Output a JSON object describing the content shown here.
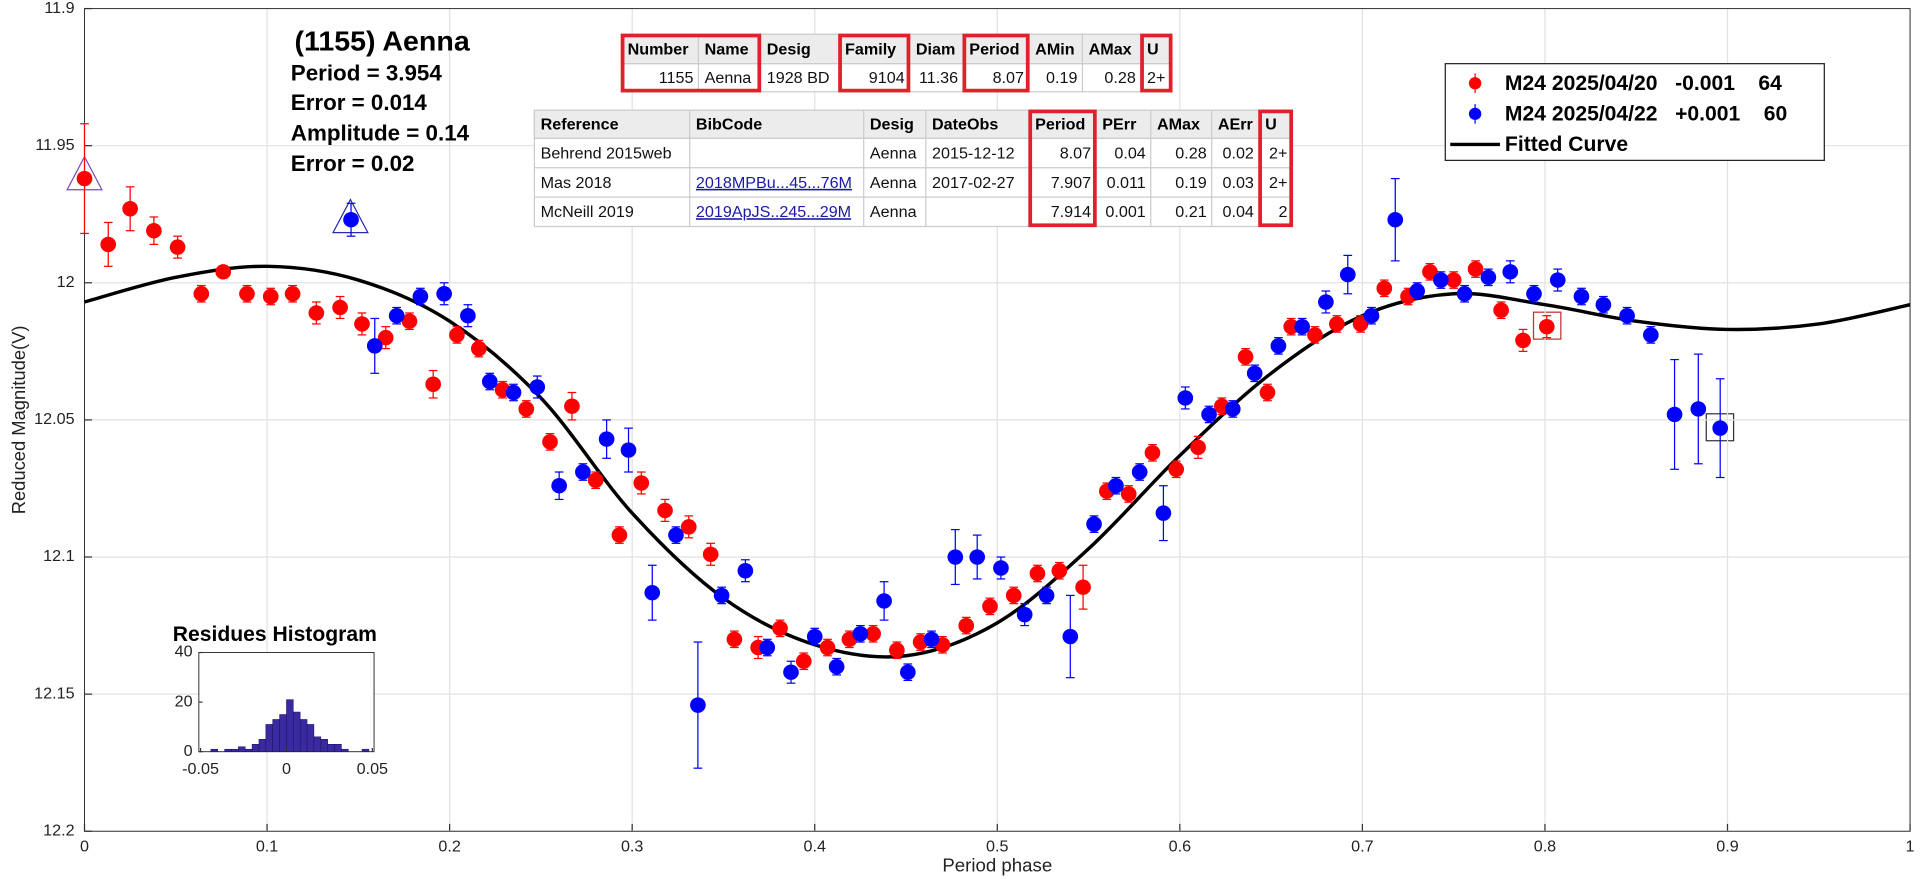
{
  "chart_data": [
    {
      "type": "scatter",
      "annotations": [
        "(1155) Aenna",
        "Period =  3.954",
        "Error = 0.014",
        "Amplitude = 0.14",
        "Error = 0.02"
      ],
      "x_label": "Period phase",
      "y_label": "Reduced Magnitude(V)",
      "xlim": [
        0,
        1
      ],
      "xticks": [
        0,
        0.1,
        0.2,
        0.3,
        0.4,
        0.5,
        0.6,
        0.7,
        0.8,
        0.9,
        1
      ],
      "ylim": [
        12.2,
        11.9
      ],
      "y_reversed": true,
      "yticks": [
        11.9,
        11.95,
        12,
        12.05,
        12.1,
        12.15,
        12.2
      ],
      "grid": true,
      "legend": "upper right",
      "series": [
        {
          "name": "M24 2025/04/20   -0.001    64",
          "color": "#ff0000",
          "x": [
            0,
            0.013,
            0.025,
            0.038,
            0.051,
            0.064,
            0.076,
            0.089,
            0.102,
            0.114,
            0.127,
            0.14,
            0.152,
            0.165,
            0.178,
            0.191,
            0.204,
            0.216,
            0.229,
            0.242,
            0.255,
            0.267,
            0.28,
            0.293,
            0.305,
            0.318,
            0.331,
            0.343,
            0.356,
            0.369,
            0.381,
            0.394,
            0.407,
            0.419,
            0.432,
            0.445,
            0.458,
            0.47,
            0.483,
            0.496,
            0.509,
            0.522,
            0.534,
            0.547,
            0.56,
            0.572,
            0.585,
            0.598,
            0.61,
            0.623,
            0.636,
            0.648,
            0.661,
            0.674,
            0.686,
            0.699,
            0.712,
            0.725,
            0.737,
            0.75,
            0.762,
            0.776,
            0.788,
            0.801
          ],
          "values": [
            11.962,
            11.986,
            11.973,
            11.981,
            11.987,
            12.004,
            11.996,
            12.004,
            12.005,
            12.004,
            12.011,
            12.009,
            12.015,
            12.02,
            12.014,
            12.037,
            12.019,
            12.024,
            12.039,
            12.046,
            12.058,
            12.045,
            12.072,
            12.092,
            12.073,
            12.083,
            12.089,
            12.099,
            12.13,
            12.133,
            12.126,
            12.138,
            12.133,
            12.13,
            12.128,
            12.134,
            12.131,
            12.132,
            12.125,
            12.118,
            12.114,
            12.106,
            12.105,
            12.111,
            12.076,
            12.077,
            12.062,
            12.068,
            12.06,
            12.045,
            12.027,
            12.04,
            12.016,
            12.019,
            12.015,
            12.015,
            12.002,
            12.005,
            11.996,
            11.999,
            11.995,
            12.01,
            12.021,
            12.016
          ],
          "errors": [
            0.02,
            0.008,
            0.008,
            0.005,
            0.004,
            0.003,
            0.002,
            0.003,
            0.003,
            0.003,
            0.004,
            0.004,
            0.004,
            0.004,
            0.003,
            0.005,
            0.003,
            0.003,
            0.003,
            0.003,
            0.003,
            0.005,
            0.003,
            0.003,
            0.004,
            0.004,
            0.004,
            0.004,
            0.003,
            0.004,
            0.003,
            0.003,
            0.003,
            0.003,
            0.003,
            0.003,
            0.003,
            0.003,
            0.003,
            0.003,
            0.003,
            0.003,
            0.003,
            0.008,
            0.003,
            0.003,
            0.003,
            0.003,
            0.004,
            0.003,
            0.003,
            0.003,
            0.003,
            0.003,
            0.003,
            0.003,
            0.003,
            0.003,
            0.003,
            0.003,
            0.003,
            0.003,
            0.004,
            0.004
          ]
        },
        {
          "name": "M24 2025/04/22   +0.001    60",
          "color": "#0000ff",
          "x": [
            0.146,
            0.159,
            0.171,
            0.184,
            0.197,
            0.21,
            0.222,
            0.235,
            0.248,
            0.26,
            0.273,
            0.286,
            0.298,
            0.311,
            0.324,
            0.336,
            0.349,
            0.362,
            0.374,
            0.387,
            0.4,
            0.412,
            0.425,
            0.438,
            0.451,
            0.464,
            0.477,
            0.489,
            0.502,
            0.515,
            0.527,
            0.54,
            0.553,
            0.565,
            0.578,
            0.591,
            0.603,
            0.616,
            0.629,
            0.641,
            0.654,
            0.667,
            0.68,
            0.692,
            0.705,
            0.718,
            0.73,
            0.743,
            0.756,
            0.769,
            0.781,
            0.794,
            0.807,
            0.82,
            0.832,
            0.845,
            0.858,
            0.871,
            0.884,
            0.896
          ],
          "values": [
            11.977,
            12.023,
            12.012,
            12.005,
            12.004,
            12.012,
            12.036,
            12.04,
            12.038,
            12.074,
            12.069,
            12.057,
            12.061,
            12.113,
            12.092,
            12.154,
            12.114,
            12.105,
            12.133,
            12.142,
            12.129,
            12.14,
            12.128,
            12.116,
            12.142,
            12.13,
            12.1,
            12.1,
            12.104,
            12.121,
            12.114,
            12.129,
            12.088,
            12.074,
            12.069,
            12.084,
            12.042,
            12.048,
            12.046,
            12.033,
            12.023,
            12.016,
            12.007,
            11.997,
            12.012,
            11.977,
            12.003,
            11.999,
            12.004,
            11.998,
            11.996,
            12.004,
            11.999,
            12.005,
            12.008,
            12.012,
            12.019,
            12.048,
            12.046,
            12.053
          ],
          "errors": [
            0.006,
            0.01,
            0.003,
            0.003,
            0.004,
            0.004,
            0.003,
            0.003,
            0.004,
            0.005,
            0.003,
            0.007,
            0.008,
            0.01,
            0.003,
            0.023,
            0.003,
            0.004,
            0.003,
            0.004,
            0.003,
            0.003,
            0.003,
            0.007,
            0.003,
            0.003,
            0.01,
            0.008,
            0.004,
            0.004,
            0.003,
            0.015,
            0.003,
            0.003,
            0.003,
            0.01,
            0.004,
            0.003,
            0.003,
            0.003,
            0.003,
            0.003,
            0.004,
            0.007,
            0.003,
            0.015,
            0.003,
            0.003,
            0.003,
            0.003,
            0.004,
            0.003,
            0.004,
            0.003,
            0.003,
            0.003,
            0.003,
            0.02,
            0.02,
            0.018
          ]
        }
      ],
      "curve": {
        "name": "Fitted Curve",
        "color": "#000000",
        "x": [
          0,
          0.05,
          0.1,
          0.15,
          0.2,
          0.25,
          0.3,
          0.35,
          0.4,
          0.45,
          0.5,
          0.55,
          0.6,
          0.65,
          0.7,
          0.75,
          0.8,
          0.85,
          0.9,
          0.95,
          1
        ],
        "values": [
          12.007,
          11.998,
          11.994,
          11.999,
          12.014,
          12.042,
          12.084,
          12.115,
          12.132,
          12.136,
          12.124,
          12.097,
          12.063,
          12.033,
          12.012,
          12.004,
          12.008,
          12.014,
          12.017,
          12.015,
          12.008
        ]
      }
    },
    {
      "type": "histogram",
      "title": "Residues Histogram",
      "color": "#3a2aa0",
      "bins": [
        -0.044,
        -0.04,
        -0.036,
        -0.032,
        -0.028,
        -0.024,
        -0.02,
        -0.016,
        -0.012,
        -0.008,
        -0.004,
        0,
        0.004,
        0.008,
        0.012,
        0.016,
        0.02,
        0.024,
        0.028,
        0.032,
        0.036,
        0.04,
        0.044,
        0.048
      ],
      "values": [
        1,
        0,
        1,
        1,
        2,
        1,
        3,
        5,
        11,
        13,
        15,
        21,
        16,
        13,
        11,
        6,
        5,
        3,
        3,
        1,
        0,
        0,
        1
      ],
      "xlim": [
        -0.051,
        0.051
      ],
      "xticks": [
        -0.05,
        0,
        0.05
      ],
      "ylim": [
        0,
        40
      ],
      "yticks": [
        0,
        20,
        40
      ]
    }
  ],
  "tables": [
    {
      "headers": [
        "Number",
        "Name",
        "Desig",
        "Family",
        "Diam",
        "Period",
        "AMin",
        "AMax",
        "U"
      ],
      "rows": [
        [
          1155,
          "Aenna",
          "1928 BD",
          9104,
          11.36,
          8.07,
          0.19,
          0.28,
          "2+"
        ]
      ]
    },
    {
      "headers": [
        "Reference",
        "BibCode",
        "Desig",
        "DateObs",
        "Period",
        "PErr",
        "AMax",
        "AErr",
        "U"
      ],
      "rows": [
        [
          "Behrend 2015web",
          null,
          "Aenna",
          "2015-12-12",
          8.07,
          0.04,
          0.28,
          0.02,
          "2+"
        ],
        [
          "Mas 2018",
          "2018MPBu...45...76M",
          "Aenna",
          "2017-02-27",
          7.907,
          0.011,
          0.19,
          0.03,
          "2+"
        ],
        [
          "McNeill 2019",
          "2019ApJS..245...29M",
          "Aenna",
          null,
          7.914,
          0.001,
          0.21,
          0.04,
          "2"
        ]
      ]
    }
  ]
}
